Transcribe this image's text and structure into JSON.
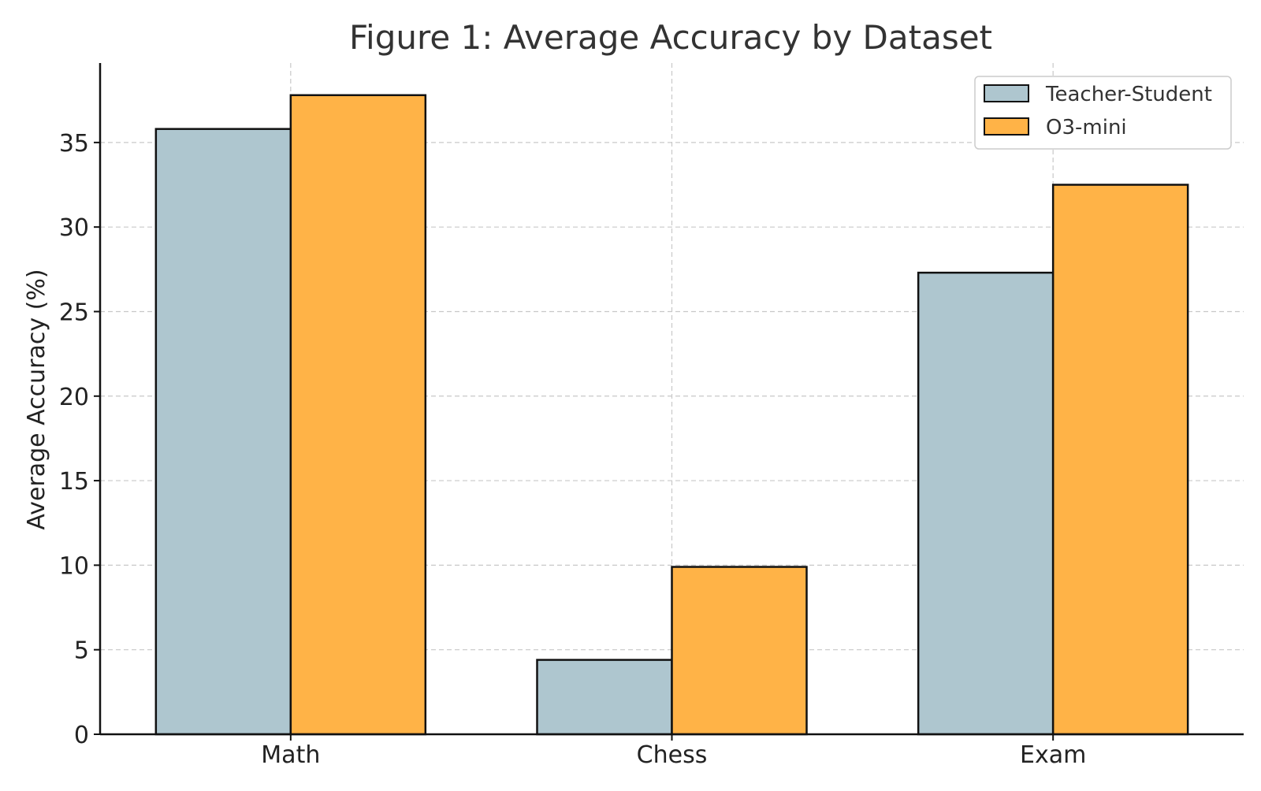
{
  "chart_data": {
    "type": "bar",
    "title": "Figure 1: Average Accuracy by Dataset",
    "xlabel": "",
    "ylabel": "Average Accuracy (%)",
    "categories": [
      "Math",
      "Chess",
      "Exam"
    ],
    "series": [
      {
        "name": "Teacher-Student",
        "values": [
          35.8,
          4.4,
          27.3
        ],
        "color": "#aec6cf"
      },
      {
        "name": "O3-mini",
        "values": [
          37.8,
          9.9,
          32.5
        ],
        "color": "#ffb347"
      }
    ],
    "yticks": [
      0,
      5,
      10,
      15,
      20,
      25,
      30,
      35
    ],
    "ylim": [
      0,
      39.7
    ],
    "grid": true,
    "legend_position": "top-right"
  }
}
